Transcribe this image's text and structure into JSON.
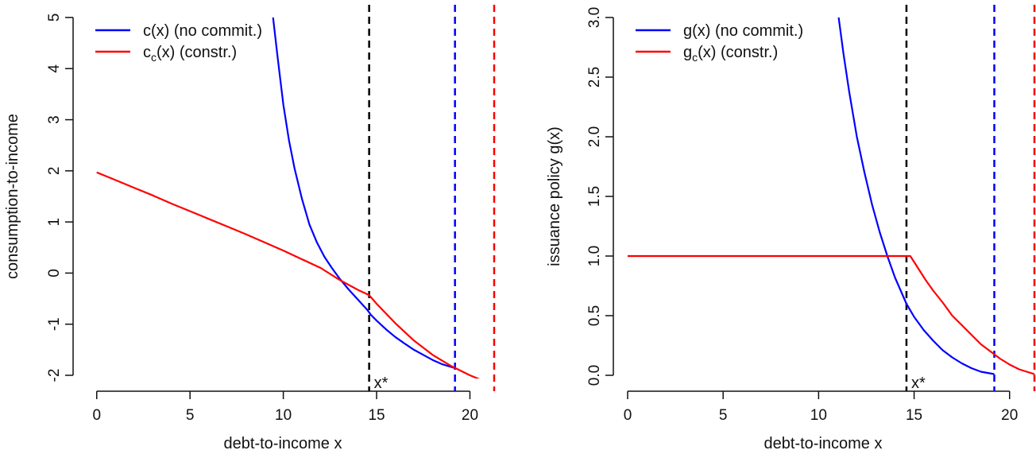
{
  "chart_data": [
    {
      "type": "line",
      "title": "",
      "xlabel": "debt-to-income x",
      "ylabel": "consumption-to-income",
      "xlim": [
        -0.5,
        21.3
      ],
      "ylim": [
        -2.0,
        5.0
      ],
      "xticks": [
        0,
        5,
        10,
        15,
        20
      ],
      "xtick_labels": [
        "0",
        "5",
        "10",
        "15",
        "20"
      ],
      "yticks": [
        -2,
        -1,
        0,
        1,
        2,
        3,
        4,
        5
      ],
      "ytick_labels": [
        "-2",
        "-1",
        "0",
        "1",
        "2",
        "3",
        "4",
        "5"
      ],
      "grid": false,
      "legend_position": "top-left",
      "series": [
        {
          "name": "c(x) (no commit.)",
          "legend_main": "c",
          "legend_sub": "",
          "legend_rest": "(x) (no commit.)",
          "color": "#0000ff",
          "x": [
            9.45,
            9.7,
            10.0,
            10.3,
            10.6,
            11.0,
            11.4,
            11.8,
            12.2,
            12.6,
            13.0,
            13.5,
            14.0,
            14.5,
            14.7,
            15.0,
            15.5,
            16.0,
            16.5,
            17.0,
            17.5,
            18.0,
            18.5,
            19.2
          ],
          "y": [
            5.0,
            4.2,
            3.3,
            2.6,
            2.05,
            1.45,
            0.95,
            0.6,
            0.32,
            0.1,
            -0.1,
            -0.32,
            -0.52,
            -0.72,
            -0.82,
            -0.93,
            -1.1,
            -1.25,
            -1.38,
            -1.5,
            -1.6,
            -1.7,
            -1.78,
            -1.86
          ]
        },
        {
          "name": "c_c(x) (constr.)",
          "legend_main": "c",
          "legend_sub": "c",
          "legend_rest": "(x) (constr.)",
          "color": "#ff0000",
          "x": [
            0,
            1,
            2,
            3,
            4,
            5,
            6,
            7,
            8,
            9,
            10,
            11,
            12,
            13,
            14,
            14.6,
            15,
            16,
            17,
            18,
            19,
            20,
            21,
            21.3
          ],
          "y": [
            1.97,
            1.82,
            1.67,
            1.52,
            1.36,
            1.21,
            1.06,
            0.91,
            0.76,
            0.6,
            0.44,
            0.27,
            0.1,
            -0.13,
            -0.33,
            -0.43,
            -0.6,
            -0.98,
            -1.32,
            -1.6,
            -1.82,
            -2.0,
            -2.15,
            -2.2
          ]
        }
      ],
      "vlines": [
        {
          "x": 14.6,
          "color": "#000000",
          "style": "dashed"
        },
        {
          "x": 19.2,
          "color": "#0000ff",
          "style": "dashed"
        },
        {
          "x": 21.3,
          "color": "#ff0000",
          "style": "dashed"
        }
      ],
      "annotations": [
        {
          "text": "x*",
          "x": 14.6,
          "y": -2.0
        }
      ]
    },
    {
      "type": "line",
      "title": "",
      "xlabel": "debt-to-income x",
      "ylabel": "issuance policy g(x)",
      "xlim": [
        0,
        21.3
      ],
      "ylim": [
        0.0,
        3.0
      ],
      "xticks": [
        0,
        5,
        10,
        15,
        20
      ],
      "xtick_labels": [
        "0",
        "5",
        "10",
        "15",
        "20"
      ],
      "yticks": [
        0,
        0.5,
        1.0,
        1.5,
        2.0,
        2.5,
        3.0
      ],
      "ytick_labels": [
        "0.0",
        "0.5",
        "1.0",
        "1.5",
        "2.0",
        "2.5",
        "3.0"
      ],
      "grid": false,
      "legend_position": "top-left",
      "series": [
        {
          "name": "g(x) (no commit.)",
          "legend_main": "g",
          "legend_sub": "",
          "legend_rest": "(x) (no commit.)",
          "color": "#0000ff",
          "x": [
            11.05,
            11.3,
            11.6,
            12.0,
            12.4,
            12.8,
            13.2,
            13.6,
            14.0,
            14.6,
            15.0,
            15.5,
            16.0,
            16.5,
            17.0,
            17.5,
            18.0,
            18.5,
            19.2
          ],
          "y": [
            3.0,
            2.7,
            2.38,
            2.0,
            1.7,
            1.43,
            1.2,
            1.0,
            0.82,
            0.6,
            0.49,
            0.38,
            0.29,
            0.21,
            0.15,
            0.1,
            0.06,
            0.03,
            0.01
          ]
        },
        {
          "name": "g_c(x) (constr.)",
          "legend_main": "g",
          "legend_sub": "c",
          "legend_rest": "(x) (constr.)",
          "color": "#ff0000",
          "x": [
            0,
            5,
            10,
            14.6,
            14.8,
            15.2,
            15.6,
            16.0,
            16.5,
            17.0,
            17.5,
            18.0,
            18.5,
            19.0,
            19.5,
            20.0,
            20.5,
            21.3
          ],
          "y": [
            1.0,
            1.0,
            1.0,
            1.0,
            1.0,
            0.9,
            0.8,
            0.71,
            0.61,
            0.5,
            0.42,
            0.34,
            0.26,
            0.2,
            0.14,
            0.09,
            0.05,
            0.01
          ]
        }
      ],
      "vlines": [
        {
          "x": 14.6,
          "color": "#000000",
          "style": "dashed"
        },
        {
          "x": 19.2,
          "color": "#0000ff",
          "style": "dashed"
        },
        {
          "x": 21.3,
          "color": "#ff0000",
          "style": "dashed"
        }
      ],
      "annotations": [
        {
          "text": "x*",
          "x": 14.6,
          "y": 0.0
        }
      ]
    }
  ]
}
